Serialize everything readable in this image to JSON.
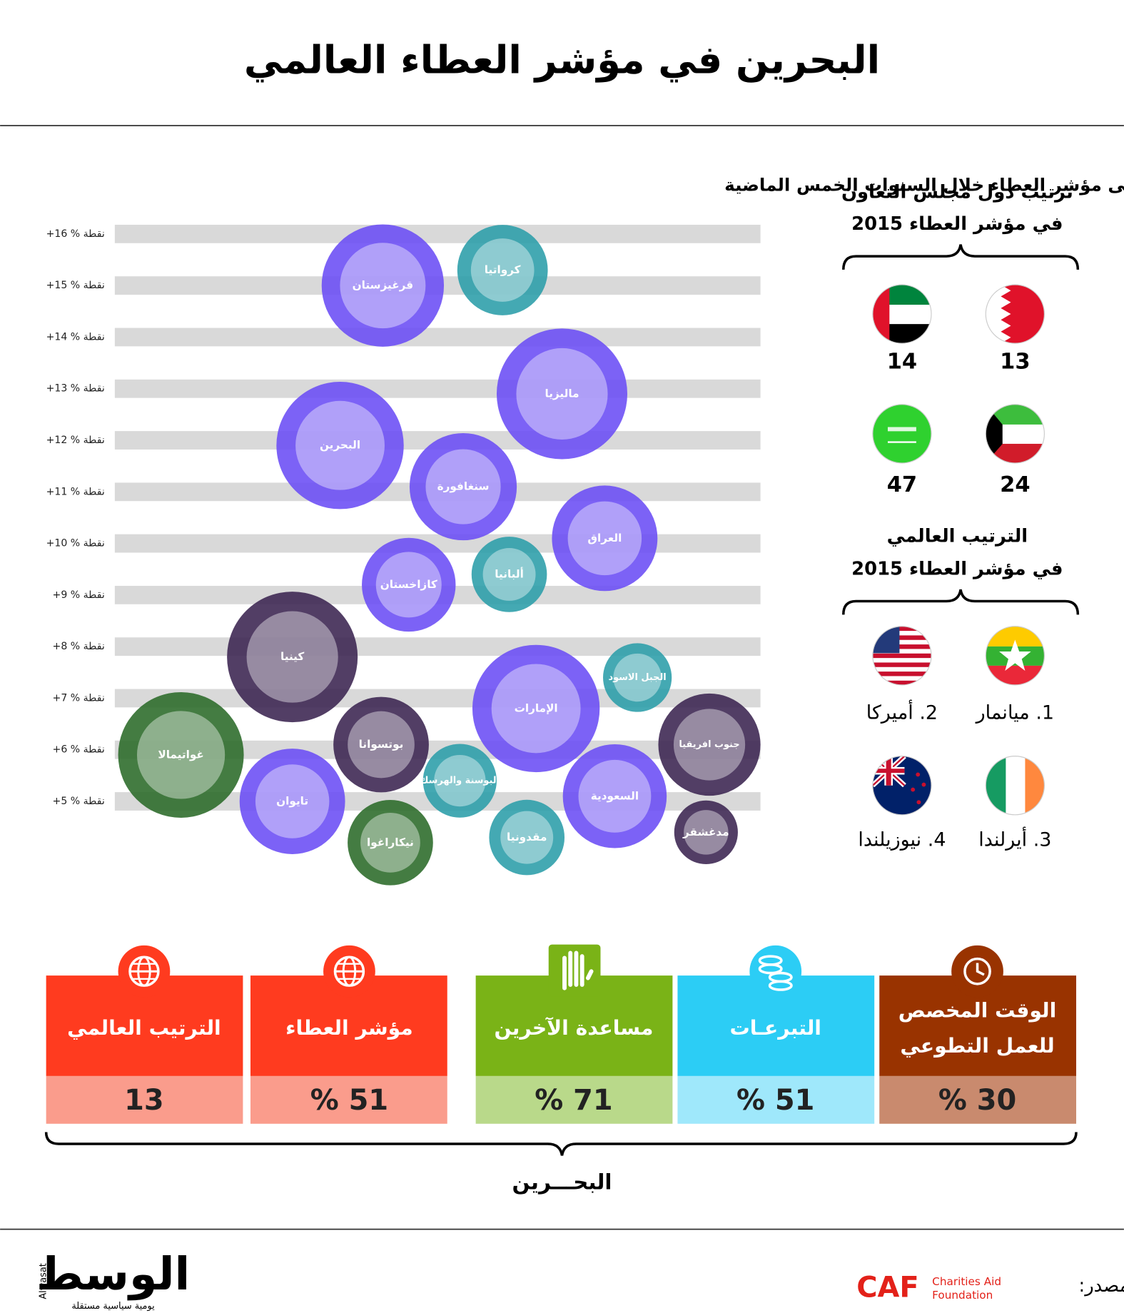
{
  "header": {
    "title": "البحرين في مؤشر العطاء العالمي"
  },
  "chart_data": {
    "type": "bubble",
    "title": "أكثر دول حققت تقدماً على مؤشر العطاء خلال السنوات الخمس الماضية",
    "categories": [
      "قرغيزستان",
      "كرواتيا",
      "ماليزيا",
      "البحرين",
      "سنغافورة",
      "العراق",
      "ألبانيا",
      "كازاخستان",
      "كينيا",
      "الجبل الاسود",
      "الإمارات",
      "جنوب افريقيا",
      "بوتسوانا",
      "غواتيمالا",
      "البوسنة والهرسك",
      "السعودية",
      "تايوان",
      "نيكاراغوا",
      "مقدونيا",
      "مدغشقر"
    ],
    "values": [
      15,
      15.3,
      12.9,
      11.9,
      11.1,
      10.1,
      9.4,
      9.2,
      7.8,
      7.4,
      6.8,
      6.1,
      6.1,
      5.9,
      5.4,
      5.1,
      5.0,
      4.2,
      4.3,
      4.4
    ],
    "colors": [
      "#6a4cf5",
      "#2a9da8",
      "#6a4cf5",
      "#6a4cf5",
      "#6a4cf5",
      "#6a4cf5",
      "#2a9da8",
      "#6a4cf5",
      "#3a2350",
      "#2a9da8",
      "#6a4cf5",
      "#3a2350",
      "#3a2350",
      "#2a6a28",
      "#2a9da8",
      "#6a4cf5",
      "#6a4cf5",
      "#2a6a28",
      "#2a9da8",
      "#3a2350"
    ],
    "ylim": [
      3.5,
      16.5
    ],
    "yticks": [
      {
        "value": 16,
        "label": "+16 % نقطة"
      },
      {
        "value": 15,
        "label": "+15 % نقطة"
      },
      {
        "value": 14,
        "label": "+14 % نقطة"
      },
      {
        "value": 13,
        "label": "+13 % نقطة"
      },
      {
        "value": 12,
        "label": "+12 % نقطة"
      },
      {
        "value": 11,
        "label": "+11 % نقطة"
      },
      {
        "value": 10,
        "label": "+10 % نقطة"
      },
      {
        "value": 9,
        "label": "+9 % نقطة"
      },
      {
        "value": 8,
        "label": "+8 % نقطة"
      },
      {
        "value": 7,
        "label": "+7 % نقطة"
      },
      {
        "value": 6,
        "label": "+6 % نقطة"
      },
      {
        "value": 5,
        "label": "+5 % نقطة"
      }
    ],
    "grid": true
  },
  "gcc_ranking": {
    "title": [
      "ترتيب دول مجلس التعاون",
      "في مؤشر العطاء 2015"
    ],
    "ranks": [
      "13",
      "14",
      "24",
      "47"
    ]
  },
  "world_ranking": {
    "title": [
      "الترتيب العالمي",
      "في مؤشر العطاء 2015"
    ],
    "items": [
      "1. ميانمار",
      "2. أميركا",
      "3. أيرلندا",
      "4. نيوزيلندا"
    ]
  },
  "bahrain_stats": {
    "items": [
      {
        "label": [
          "الوقت المخصص",
          "للعمل التطوعي"
        ],
        "value": "% 30"
      },
      {
        "label": [
          "التبرعـات"
        ],
        "value": "% 51"
      },
      {
        "label": [
          "مساعدة الآخرين"
        ],
        "value": "% 71"
      },
      {
        "label": [
          "مؤشر العطاء"
        ],
        "value": "% 51"
      },
      {
        "label": [
          "الترتيب العالمي"
        ],
        "value": "13"
      }
    ],
    "caption": "البحـــرين"
  },
  "footer": {
    "logo": "الوسط",
    "logo_latin": "Alwasat",
    "tagline": "يومية سياسية مستقلة",
    "source_label": "المصدر:",
    "source_logo": "CAF",
    "source_name": [
      "Charities Aid",
      "Foundation"
    ]
  }
}
